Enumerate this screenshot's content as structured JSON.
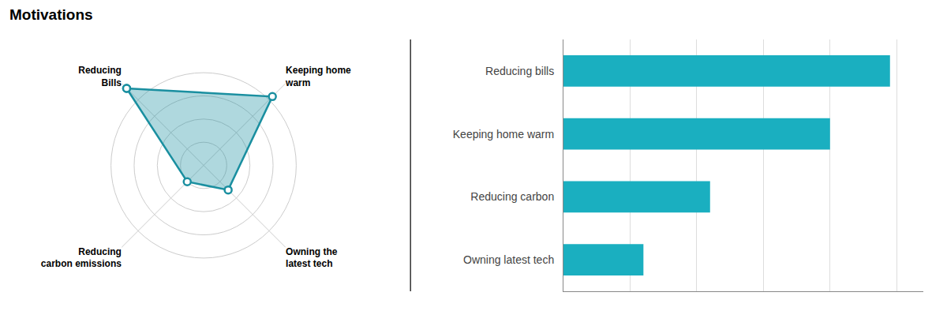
{
  "chart_data": [
    {
      "type": "radar",
      "title": "Motivations",
      "categories": [
        "Reducing\nBills",
        "Keeping home\nwarm",
        "Owning the\nlatest tech",
        "Reducing\ncarbon emissions"
      ],
      "values": [
        4.7,
        4.2,
        1.5,
        1.0
      ],
      "color": "#1a8fa0",
      "marker": "circle",
      "ylim": [
        0,
        5
      ],
      "yticks": [
        1,
        2,
        3,
        4,
        5
      ],
      "grid": true,
      "tick_labels": false
    },
    {
      "type": "bar",
      "orientation": "horizontal",
      "categories": [
        "Reducing bills",
        "Keeping home warm",
        "Reducing carbon",
        "Owning latest tech"
      ],
      "values": [
        98,
        80,
        44,
        24
      ],
      "color": "#1aafc0",
      "xlim": [
        0,
        108
      ],
      "xticks": [
        0,
        20,
        40,
        60,
        80,
        100
      ],
      "grid": true,
      "tick_labels": "y"
    }
  ]
}
